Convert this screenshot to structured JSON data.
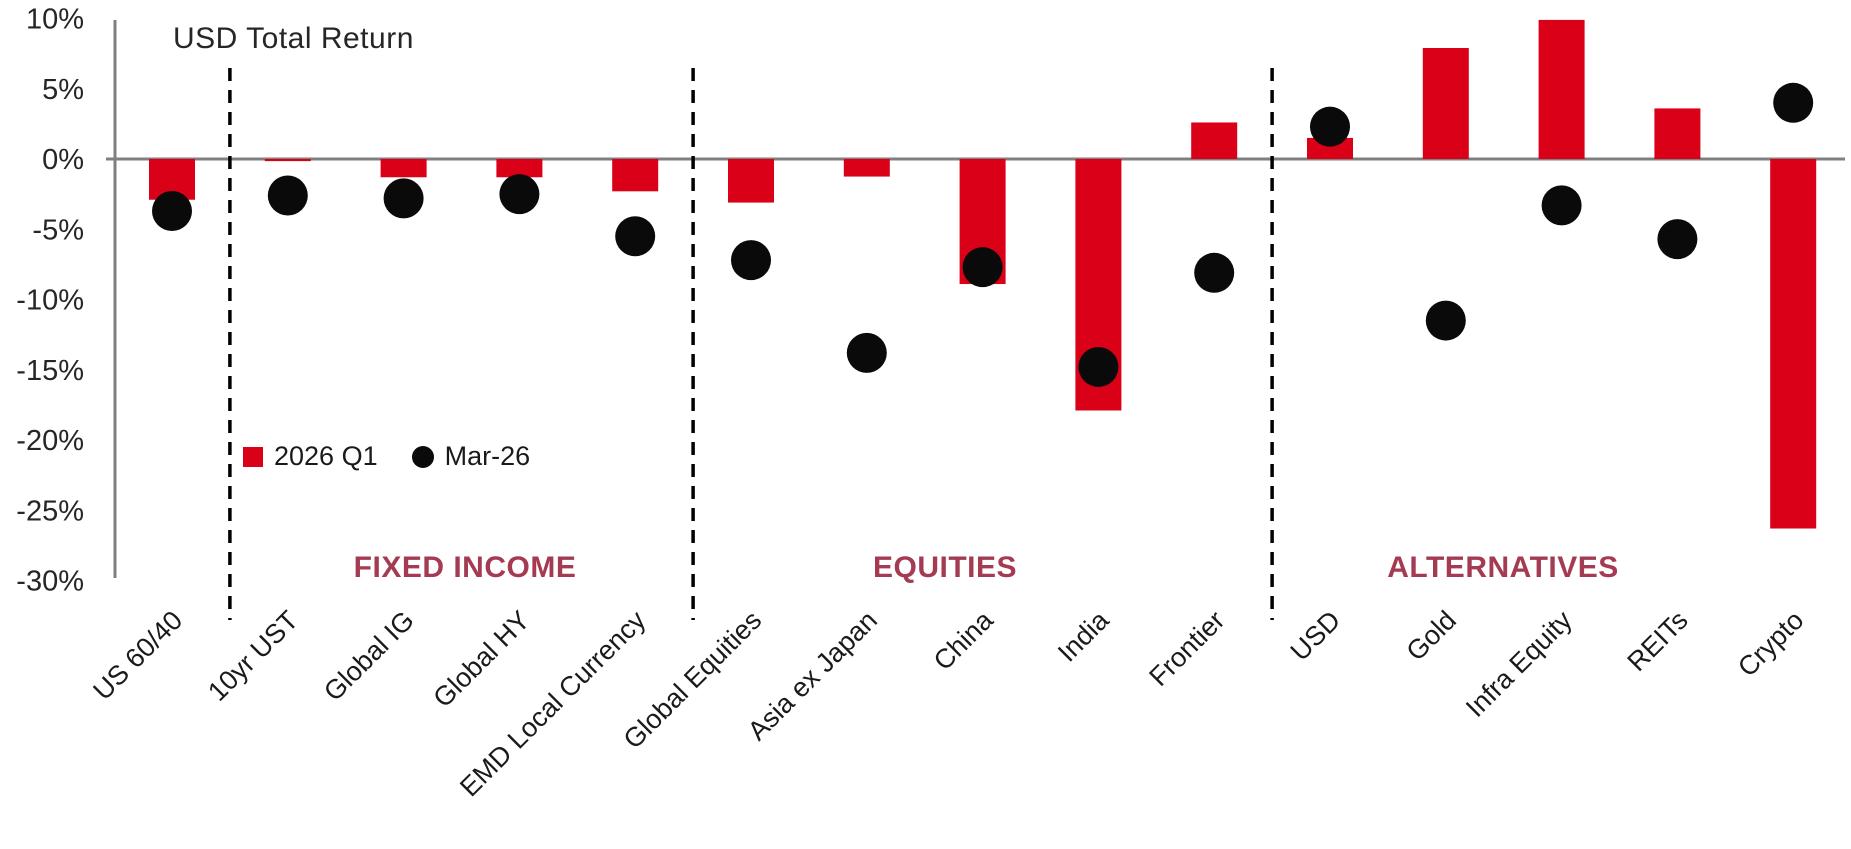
{
  "title": "USD Total Return",
  "legend": {
    "bar_label": "2026 Q1",
    "dot_label": "Mar-26"
  },
  "colors": {
    "bar": "#d90018",
    "dot": "#0a0a0a",
    "group_label": "#a43b52",
    "axis": "#7f7f7f",
    "text": "#262626",
    "separator": "#000000"
  },
  "chart_data": {
    "type": "bar",
    "title": "USD Total Return",
    "categories": [
      "US 60/40",
      "10yr UST",
      "Global IG",
      "Global HY",
      "EMD Local Currency",
      "Global Equities",
      "Asia ex Japan",
      "China",
      "India",
      "Frontier",
      "USD",
      "Gold",
      "Infra Equity",
      "REITs",
      "Crypto"
    ],
    "series": [
      {
        "name": "2026 Q1",
        "type": "bar",
        "color": "#d90018",
        "values": [
          -2.9,
          -0.15,
          -1.3,
          -1.3,
          -2.3,
          -3.1,
          -1.25,
          -8.9,
          -17.9,
          2.6,
          1.5,
          7.9,
          9.9,
          3.6,
          -26.3
        ]
      },
      {
        "name": "Mar-26",
        "type": "scatter",
        "color": "#0a0a0a",
        "values": [
          -3.7,
          -2.6,
          -2.8,
          -2.5,
          -5.5,
          -7.2,
          -13.8,
          -7.7,
          -14.8,
          -8.1,
          2.3,
          -11.5,
          -3.3,
          -5.7,
          4.0
        ]
      }
    ],
    "ylim": [
      -30,
      10
    ],
    "yticks": [
      10,
      5,
      0,
      -5,
      -10,
      -15,
      -20,
      -25,
      -30
    ],
    "ytick_format": "percent",
    "grid": false,
    "legend_position": "inside-left",
    "groups": [
      {
        "label": "FIXED INCOME",
        "start": 1,
        "end": 4,
        "label_x_center": 465
      },
      {
        "label": "EQUITIES",
        "start": 5,
        "end": 9,
        "label_x_center": 945
      },
      {
        "label": "ALTERNATIVES",
        "start": 10,
        "end": 14,
        "label_x_center": 1503
      }
    ],
    "separators_after_index": [
      0,
      4,
      9
    ]
  }
}
